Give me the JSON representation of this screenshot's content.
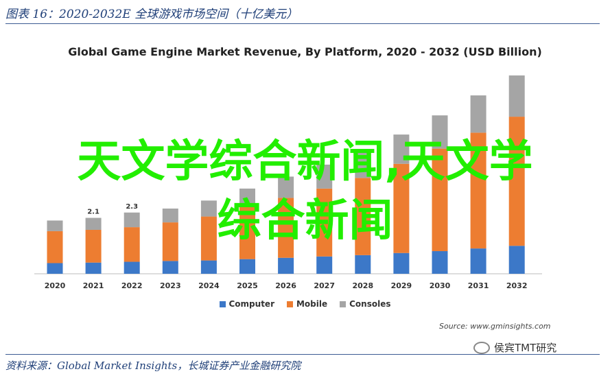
{
  "figure_caption": "图表 16：2020-2032E 全球游戏市场空间（十亿美元）",
  "source_note": "Source: www.gminsights.com",
  "footer_source": "资料来源：Global Market Insights，长城证券产业金融研究院",
  "watermark": "侯宾TMT研究",
  "wechat_icon": "wechat-icon",
  "overlay_line1": "天文学综合新闻,天文学",
  "overlay_line2": "综合新闻",
  "colors": {
    "computer": "#3c78c8",
    "mobile": "#ed7d31",
    "consoles": "#a5a5a5",
    "overlay": "#22ee00",
    "caption": "#1f3f78"
  },
  "chart_data": {
    "type": "bar",
    "stacked": true,
    "title": "Global Game Engine Market Revenue, By Platform, 2020 - 2032 (USD Billion)",
    "categories": [
      "2020",
      "2021",
      "2022",
      "2023",
      "2024",
      "2025",
      "2026",
      "2027",
      "2028",
      "2029",
      "2030",
      "2031",
      "2032"
    ],
    "series": [
      {
        "name": "Computer",
        "values": [
          0.4,
          0.42,
          0.45,
          0.48,
          0.5,
          0.55,
          0.6,
          0.65,
          0.7,
          0.78,
          0.85,
          0.95,
          1.05
        ]
      },
      {
        "name": "Mobile",
        "values": [
          1.2,
          1.23,
          1.3,
          1.45,
          1.65,
          1.95,
          2.25,
          2.55,
          2.9,
          3.35,
          3.85,
          4.35,
          4.85
        ]
      },
      {
        "name": "Consoles",
        "values": [
          0.4,
          0.45,
          0.55,
          0.52,
          0.6,
          0.7,
          0.8,
          0.9,
          1.0,
          1.1,
          1.25,
          1.4,
          1.55
        ]
      }
    ],
    "data_labels": [
      "",
      "2.1",
      "2.3",
      "",
      "",
      "",
      "",
      "",
      "",
      "",
      "",
      "",
      ""
    ],
    "ylim": [
      0,
      7.5
    ],
    "grid": false,
    "legend_position": "bottom"
  }
}
